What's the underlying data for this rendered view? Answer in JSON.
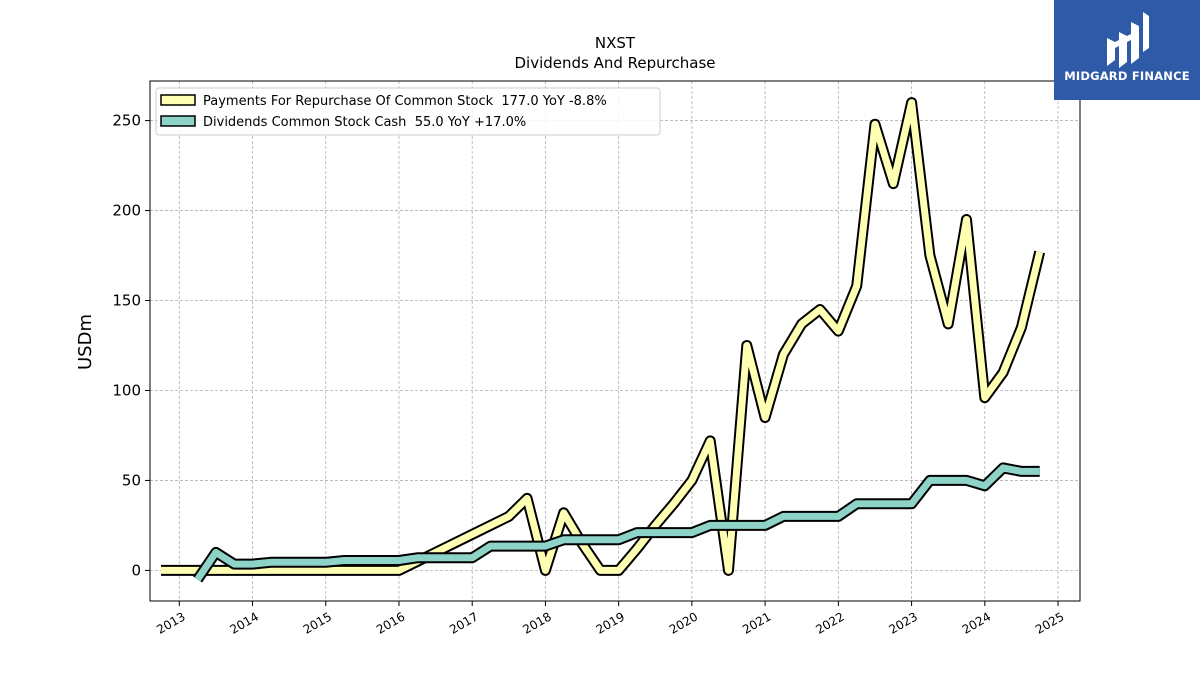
{
  "header": {
    "title": "NXST",
    "subtitle": "Dividends And Repurchase"
  },
  "brand": {
    "name": "MIDGARD FINANCE",
    "logo_icon": "midgard-logo-icon",
    "background_color": "#2e5aa8"
  },
  "chart_data": {
    "type": "line",
    "title": "NXST",
    "subtitle": "Dividends And Repurchase",
    "ylabel": "USDm",
    "xlabel": "",
    "xlim": [
      2012.6,
      2025.3
    ],
    "ylim": [
      -17,
      272
    ],
    "yticks": [
      0,
      50,
      100,
      150,
      200,
      250
    ],
    "xticks": [
      2013,
      2014,
      2015,
      2016,
      2017,
      2018,
      2019,
      2020,
      2021,
      2022,
      2023,
      2024,
      2025
    ],
    "grid": true,
    "legend_position": "top-left",
    "series": [
      {
        "name": "Payments For Repurchase Of Common Stock",
        "legend_label": "Payments For Repurchase Of Common Stock  177.0 YoY -8.8%",
        "color": "#ffffb3",
        "x": [
          2012.75,
          2013.0,
          2013.25,
          2013.5,
          2013.75,
          2014.0,
          2014.25,
          2014.5,
          2014.75,
          2015.0,
          2015.25,
          2015.5,
          2015.75,
          2016.0,
          2016.25,
          2016.5,
          2016.75,
          2017.0,
          2017.25,
          2017.5,
          2017.75,
          2018.0,
          2018.25,
          2018.5,
          2018.75,
          2019.0,
          2019.25,
          2019.5,
          2019.75,
          2020.0,
          2020.25,
          2020.5,
          2020.75,
          2021.0,
          2021.25,
          2021.5,
          2021.75,
          2022.0,
          2022.25,
          2022.5,
          2022.75,
          2023.0,
          2023.25,
          2023.5,
          2023.75,
          2024.0,
          2024.25,
          2024.5,
          2024.75
        ],
        "values": [
          0,
          0,
          0,
          0,
          0,
          0,
          0,
          0,
          0,
          0,
          0,
          0,
          0,
          0,
          5,
          10,
          15,
          20,
          25,
          30,
          40,
          0,
          32,
          15,
          0,
          0,
          12,
          25,
          37,
          50,
          72,
          0,
          125,
          85,
          120,
          137,
          145,
          133,
          158,
          248,
          215,
          260,
          175,
          137,
          195,
          96,
          110,
          135,
          177
        ]
      },
      {
        "name": "Dividends Common Stock Cash",
        "legend_label": "Dividends Common Stock Cash  55.0 YoY +17.0%",
        "color": "#8dd3c7",
        "x": [
          2013.25,
          2013.5,
          2013.75,
          2014.0,
          2014.25,
          2014.5,
          2014.75,
          2015.0,
          2015.25,
          2015.5,
          2015.75,
          2016.0,
          2016.25,
          2016.5,
          2016.75,
          2017.0,
          2017.25,
          2017.5,
          2017.75,
          2018.0,
          2018.25,
          2018.5,
          2018.75,
          2019.0,
          2019.25,
          2019.5,
          2019.75,
          2020.0,
          2020.25,
          2020.5,
          2020.75,
          2021.0,
          2021.25,
          2021.5,
          2021.75,
          2022.0,
          2022.25,
          2022.5,
          2022.75,
          2023.0,
          2023.25,
          2023.5,
          2023.75,
          2024.0,
          2024.25,
          2024.5,
          2024.75
        ],
        "values": [
          -5,
          10,
          3.5,
          3.5,
          4.5,
          4.5,
          4.5,
          4.5,
          5.5,
          5.5,
          5.5,
          5.5,
          7,
          7,
          7,
          7,
          13.5,
          13.5,
          13.5,
          13.5,
          17,
          17,
          17,
          17,
          21,
          21,
          21,
          21,
          25,
          25,
          25,
          25,
          30,
          30,
          30,
          30,
          37,
          37,
          37,
          37,
          50,
          50,
          50,
          47,
          57,
          55,
          55
        ]
      }
    ]
  }
}
